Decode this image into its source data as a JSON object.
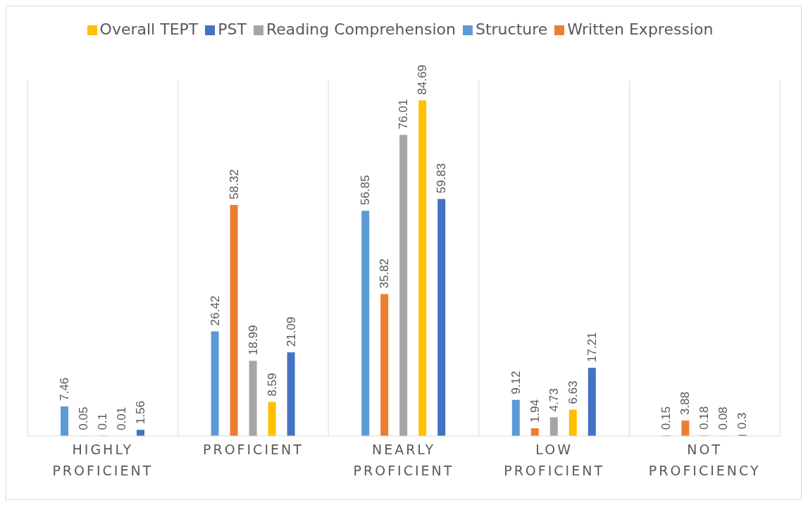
{
  "chart_data": {
    "type": "bar",
    "categories": [
      "HIGHLY PROFICIENT",
      "PROFICIENT",
      "NEARLY PROFICIENT",
      "LOW PROFICIENT",
      "NOT PROFICIENCY"
    ],
    "series": [
      {
        "name": "Structure",
        "color": "#5b9bd5",
        "values": [
          7.46,
          26.42,
          56.85,
          9.12,
          0.15
        ]
      },
      {
        "name": "Written Expression",
        "color": "#ed7d31",
        "values": [
          0.05,
          58.32,
          35.82,
          1.94,
          3.88
        ]
      },
      {
        "name": "Reading Comprehension",
        "color": "#a5a5a5",
        "values": [
          0.1,
          18.99,
          76.01,
          4.73,
          0.18
        ]
      },
      {
        "name": "Overall TEPT",
        "color": "#ffc000",
        "values": [
          0.01,
          8.59,
          84.69,
          6.63,
          0.08
        ]
      },
      {
        "name": "PST",
        "color": "#4472c4",
        "values": [
          1.56,
          21.09,
          59.83,
          17.21,
          0.3
        ]
      }
    ],
    "data_labels": true,
    "grid": "x",
    "legend": "top",
    "tick_labels": "x"
  }
}
